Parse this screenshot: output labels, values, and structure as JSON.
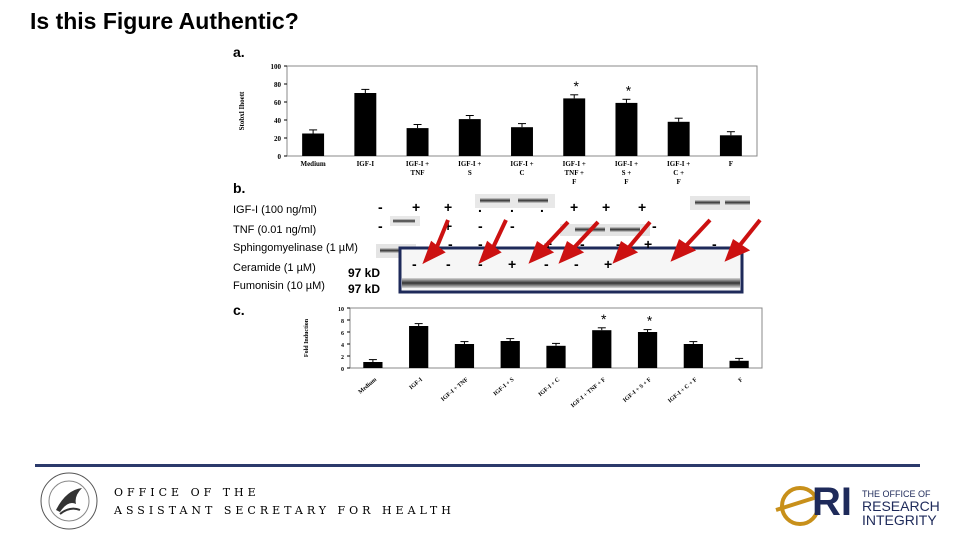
{
  "slide": {
    "title": "Is this Figure Authentic?",
    "labels": {
      "a": "a.",
      "b": "b.",
      "c": "c."
    }
  },
  "chart_a": {
    "ylabel": "Stobxl Ihoett",
    "yticks": [
      "100",
      "80",
      "60",
      "40",
      "20",
      "0"
    ],
    "categories": [
      "Medium",
      "IGF-I",
      "IGF-I + TNF",
      "IGF-I + S",
      "IGF-I + C",
      "IGF-I + TNF + F",
      "IGF-I + S + F",
      "IGF-I + C + F",
      "F"
    ],
    "values": [
      25,
      70,
      31,
      41,
      32,
      64,
      59,
      38,
      23
    ],
    "ylim": [
      0,
      100
    ],
    "star": "*"
  },
  "blot_b": {
    "conditions": [
      "IGF-I (100 ng/ml)",
      "TNF (0.01 ng/ml)",
      "Sphingomyelinase (1 µM)",
      "Ceramide (1 µM)",
      "Fumonisin (10 µM)"
    ],
    "kd": [
      "97 kD",
      "97 kD"
    ],
    "row_igf": [
      "-",
      "+",
      "+",
      ".",
      ".",
      ".",
      "+",
      "+",
      "+"
    ],
    "row_tnf": [
      "-",
      "+",
      "-",
      "-",
      "-"
    ],
    "row_sph": [
      "-",
      "-",
      "+",
      "-",
      "-",
      "+",
      "-"
    ],
    "row_cer": [
      "-",
      "-",
      "-",
      "+",
      "-",
      "-",
      "+"
    ]
  },
  "chart_c": {
    "ylabel": "Fold Induction",
    "yticks": [
      "10",
      "8",
      "6",
      "4",
      "2",
      "0"
    ],
    "categories": [
      "Medium",
      "IGF-I",
      "IGF-I + TNF",
      "IGF-I + S",
      "IGF-I + C",
      "IGF-I + TNF + F",
      "IGF-I + S + F",
      "IGF-I + C + F",
      "F"
    ],
    "values": [
      1,
      7,
      4,
      4.5,
      3.7,
      6.3,
      6,
      4,
      1.2
    ],
    "ylim": [
      0,
      10
    ],
    "star": "*"
  },
  "chart_data": [
    {
      "type": "bar",
      "categories": [
        "Medium",
        "IGF-I",
        "IGF-I + TNF",
        "IGF-I + S",
        "IGF-I + C",
        "IGF-I + TNF + F",
        "IGF-I + S + F",
        "IGF-I + C + F",
        "F"
      ],
      "values": [
        25,
        70,
        31,
        41,
        32,
        64,
        59,
        38,
        23
      ],
      "ylim": [
        0,
        100
      ]
    },
    {
      "type": "bar",
      "categories": [
        "Medium",
        "IGF-I",
        "IGF-I + TNF",
        "IGF-I + S",
        "IGF-I + C",
        "IGF-I + TNF + F",
        "IGF-I + S + F",
        "IGF-I + C + F",
        "F"
      ],
      "values": [
        1,
        7,
        4,
        4.5,
        3.7,
        6.3,
        6,
        4,
        1.2
      ],
      "ylim": [
        0,
        10
      ]
    }
  ],
  "footer": {
    "office_line1": "OFFICE OF THE",
    "office_line2": "ASSISTANT SECRETARY FOR HEALTH",
    "ori_mark": "RI",
    "ori_small": "THE OFFICE OF",
    "ori_line2": "RESEARCH",
    "ori_line3": "INTEGRITY"
  },
  "colors": {
    "arrow": "#cc1111",
    "box": "#1e2a5a",
    "footer_line": "#2b3a6b",
    "ori_gold": "#c8901a"
  }
}
